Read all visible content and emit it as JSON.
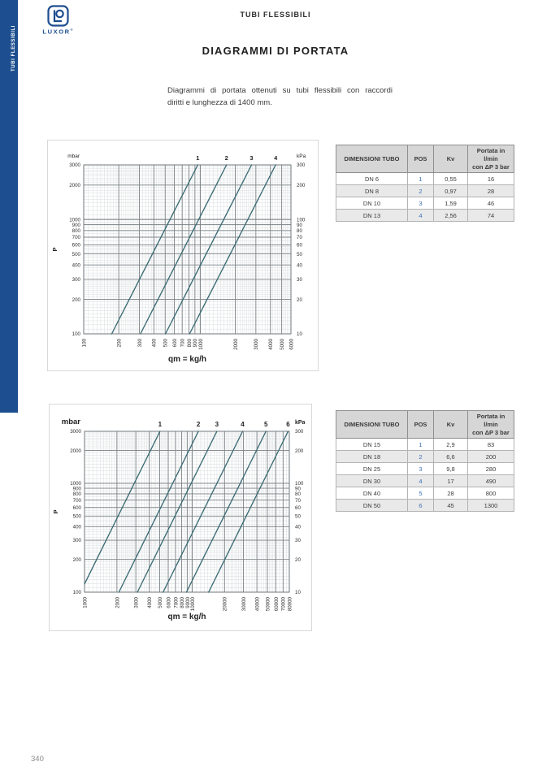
{
  "page": {
    "number": "340"
  },
  "sidebar": {
    "label": "TUBI FLESSIBILI",
    "color": "#1d4e8f"
  },
  "logo": {
    "brand": "LUXOR",
    "registered": "®"
  },
  "header": {
    "section_title": "TUBI FLESSIBILI"
  },
  "main": {
    "title": "DIAGRAMMI DI PORTATA",
    "intro_line1": "Diagrammi di portata ottenuti su tubi flessibili con raccordi",
    "intro_line2": "diritti e lunghezza di 1400 mm."
  },
  "tables": [
    {
      "headers": [
        "DIMENSIONI TUBO",
        "POS",
        "Kv",
        "Portata in l/min\ncon ΔP 3 bar"
      ],
      "rows": [
        [
          "DN 6",
          "1",
          "0,55",
          "16"
        ],
        [
          "DN 8",
          "2",
          "0,97",
          "28"
        ],
        [
          "DN 10",
          "3",
          "1,59",
          "46"
        ],
        [
          "DN 13",
          "4",
          "2,56",
          "74"
        ]
      ]
    },
    {
      "headers": [
        "DIMENSIONI TUBO",
        "POS",
        "Kv",
        "Portata in l/min\ncon ΔP 3 bar"
      ],
      "rows": [
        [
          "DN 15",
          "1",
          "2,9",
          "83"
        ],
        [
          "DN 18",
          "2",
          "6,6",
          "200"
        ],
        [
          "DN 25",
          "3",
          "9,8",
          "280"
        ],
        [
          "DN 30",
          "4",
          "17",
          "490"
        ],
        [
          "DN 40",
          "5",
          "28",
          "800"
        ],
        [
          "DN 50",
          "6",
          "45",
          "1300"
        ]
      ]
    }
  ],
  "chart_data": [
    {
      "type": "line",
      "title": "",
      "xlabel": "qm = kg/h",
      "ylabel": "P",
      "unit_left": "mbar",
      "unit_right": "kPa",
      "x_range": [
        100,
        6000
      ],
      "y_range_mbar": [
        100,
        3000
      ],
      "y_range_kpa": [
        10,
        300
      ],
      "x_ticks": [
        100,
        200,
        300,
        400,
        500,
        600,
        700,
        800,
        900,
        1000,
        2000,
        3000,
        4000,
        5000,
        6000
      ],
      "y_ticks_mbar": [
        100,
        200,
        300,
        400,
        500,
        600,
        700,
        800,
        900,
        1000,
        2000,
        3000
      ],
      "y_ticks_kpa": [
        10,
        20,
        30,
        40,
        50,
        60,
        70,
        80,
        90,
        100,
        200,
        300
      ],
      "grid": "log-log fine graph paper",
      "series": [
        {
          "label": "1",
          "kv": 0.55,
          "q_at_100mbar_kg_h": 174,
          "q_at_3000mbar_kg_h": 953
        },
        {
          "label": "2",
          "kv": 0.97,
          "q_at_100mbar_kg_h": 307,
          "q_at_3000mbar_kg_h": 1681
        },
        {
          "label": "3",
          "kv": 1.59,
          "q_at_100mbar_kg_h": 503,
          "q_at_3000mbar_kg_h": 2755
        },
        {
          "label": "4",
          "kv": 2.56,
          "q_at_100mbar_kg_h": 810,
          "q_at_3000mbar_kg_h": 4435
        }
      ],
      "model": "qm[kg/h] = Kv × √(P[mbar]/1000) × 1000"
    },
    {
      "type": "line",
      "title": "",
      "xlabel": "qm = kg/h",
      "ylabel": "P",
      "unit_left": "mbar",
      "unit_right": "kPa",
      "x_range": [
        1000,
        80000
      ],
      "y_range_mbar": [
        100,
        3000
      ],
      "y_range_kpa": [
        10,
        300
      ],
      "x_ticks": [
        1000,
        2000,
        3000,
        4000,
        5000,
        6000,
        7000,
        8000,
        9000,
        10000,
        20000,
        30000,
        40000,
        50000,
        60000,
        70000,
        80000
      ],
      "y_ticks_mbar": [
        100,
        200,
        300,
        400,
        500,
        600,
        700,
        800,
        900,
        1000,
        2000,
        3000
      ],
      "y_ticks_kpa": [
        10,
        20,
        30,
        40,
        50,
        60,
        70,
        80,
        90,
        100,
        200,
        300
      ],
      "grid": "log-log fine graph paper",
      "series": [
        {
          "label": "1",
          "kv": 2.9,
          "q_at_100mbar_kg_h": 917,
          "q_at_3000mbar_kg_h": 5023
        },
        {
          "label": "2",
          "kv": 6.6,
          "q_at_100mbar_kg_h": 2087,
          "q_at_3000mbar_kg_h": 11432
        },
        {
          "label": "3",
          "kv": 9.8,
          "q_at_100mbar_kg_h": 3099,
          "q_at_3000mbar_kg_h": 16975
        },
        {
          "label": "4",
          "kv": 17,
          "q_at_100mbar_kg_h": 5376,
          "q_at_3000mbar_kg_h": 29445
        },
        {
          "label": "5",
          "kv": 28,
          "q_at_100mbar_kg_h": 8854,
          "q_at_3000mbar_kg_h": 48497
        },
        {
          "label": "6",
          "kv": 45,
          "q_at_100mbar_kg_h": 14230,
          "q_at_3000mbar_kg_h": 77942
        }
      ],
      "model": "qm[kg/h] = Kv × √(P[mbar]/1000) × 1000"
    }
  ],
  "colors": {
    "accent_blue": "#1d4e8f",
    "curve": "#3a6a74",
    "table_header_bg": "#d6d6d6",
    "row_alt_bg": "#e9e9e9",
    "pos_text": "#3a6fb5",
    "grid_fine": "#d5d9db",
    "grid_labeled": "#7c8387"
  }
}
